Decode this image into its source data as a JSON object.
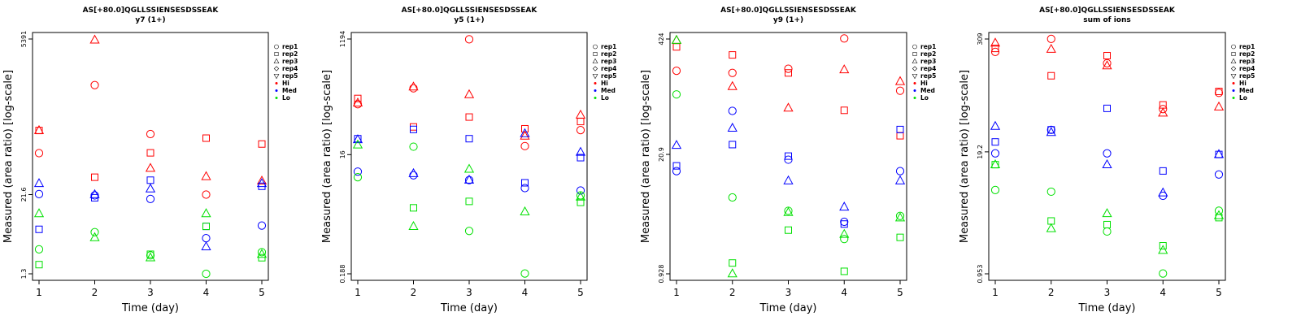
{
  "chart_data": [
    {
      "type": "scatter",
      "title": "AS[+80.0]QGLLSSIENSESDSSEAK",
      "subtitle": "y7 (1+)",
      "xlabel": "Time (day)",
      "ylabel": "Measured (area ratio) [log-scale]",
      "yscale": "log",
      "x_ticks": [
        1,
        2,
        3,
        4,
        5
      ],
      "y_ticks": [
        {
          "value": 1.3,
          "label": "1.3"
        },
        {
          "value": 21.6,
          "label": "21.6"
        },
        {
          "value": 5391,
          "label": "5391"
        }
      ],
      "ylim": [
        1.3,
        5391
      ],
      "legend": [
        "rep1",
        "rep2",
        "rep3",
        "rep4",
        "rep5",
        "Hi",
        "Med",
        "Lo"
      ],
      "legend_position": "right",
      "series": [
        {
          "level": "Hi",
          "rep": "rep1",
          "x": [
            1,
            2,
            3,
            4,
            5
          ],
          "y": [
            94,
            1050,
            185,
            21.6,
            null
          ]
        },
        {
          "level": "Hi",
          "rep": "rep2",
          "x": [
            1,
            2,
            3,
            4,
            5
          ],
          "y": [
            210,
            40,
            95,
            160,
            130
          ]
        },
        {
          "level": "Hi",
          "rep": "rep3",
          "x": [
            1,
            2,
            3,
            4,
            5
          ],
          "y": [
            210,
            5200,
            55,
            41,
            35
          ]
        },
        {
          "level": "Med",
          "rep": "rep1",
          "x": [
            1,
            2,
            3,
            4,
            5
          ],
          "y": [
            22,
            21,
            18.5,
            4.6,
            7.2
          ]
        },
        {
          "level": "Med",
          "rep": "rep2",
          "x": [
            1,
            2,
            3,
            4,
            5
          ],
          "y": [
            6.3,
            19.3,
            36,
            7,
            29
          ]
        },
        {
          "level": "Med",
          "rep": "rep3",
          "x": [
            1,
            2,
            3,
            4,
            5
          ],
          "y": [
            32,
            21.6,
            26.5,
            3.4,
            32
          ]
        },
        {
          "level": "Lo",
          "rep": "rep1",
          "x": [
            1,
            2,
            3,
            4,
            5
          ],
          "y": [
            3.1,
            5.7,
            2.5,
            1.3,
            2.8
          ]
        },
        {
          "level": "Lo",
          "rep": "rep2",
          "x": [
            1,
            2,
            3,
            4,
            5
          ],
          "y": [
            1.8,
            null,
            2.6,
            7,
            2.3
          ]
        },
        {
          "level": "Lo",
          "rep": "rep3",
          "x": [
            1,
            2,
            3,
            4,
            5
          ],
          "y": [
            11,
            4.7,
            2.3,
            11,
            2.6
          ]
        }
      ]
    },
    {
      "type": "scatter",
      "title": "AS[+80.0]QGLLSSIENSESDSSEAK",
      "subtitle": "y5 (1+)",
      "xlabel": "Time (day)",
      "ylabel": "Measured (area ratio) [log-scale]",
      "yscale": "log",
      "x_ticks": [
        1,
        2,
        3,
        4,
        5
      ],
      "y_ticks": [
        {
          "value": 0.188,
          "label": "0.188"
        },
        {
          "value": 16,
          "label": "16"
        },
        {
          "value": 1194,
          "label": "1194"
        }
      ],
      "ylim": [
        0.188,
        1194
      ],
      "legend": [
        "rep1",
        "rep2",
        "rep3",
        "rep4",
        "rep5",
        "Hi",
        "Med",
        "Lo"
      ],
      "legend_position": "right",
      "series": [
        {
          "level": "Hi",
          "rep": "rep1",
          "x": [
            1,
            2,
            3,
            4,
            5
          ],
          "y": [
            105,
            190,
            1180,
            22,
            40
          ]
        },
        {
          "level": "Hi",
          "rep": "rep2",
          "x": [
            1,
            2,
            3,
            4,
            5
          ],
          "y": [
            130,
            45,
            65,
            42,
            55
          ]
        },
        {
          "level": "Hi",
          "rep": "rep3",
          "x": [
            1,
            2,
            3,
            4,
            5
          ],
          "y": [
            110,
            200,
            150,
            32,
            70
          ]
        },
        {
          "level": "Med",
          "rep": "rep1",
          "x": [
            1,
            2,
            3,
            4,
            5
          ],
          "y": [
            8.5,
            7.4,
            6.2,
            4.6,
            4.2
          ]
        },
        {
          "level": "Med",
          "rep": "rep2",
          "x": [
            1,
            2,
            3,
            4,
            5
          ],
          "y": [
            29,
            41,
            29,
            5.6,
            14.3
          ]
        },
        {
          "level": "Med",
          "rep": "rep3",
          "x": [
            1,
            2,
            3,
            4,
            5
          ],
          "y": [
            28,
            7.9,
            6.2,
            35,
            17.5
          ]
        },
        {
          "level": "Lo",
          "rep": "rep1",
          "x": [
            1,
            2,
            3,
            4,
            5
          ],
          "y": [
            6.9,
            21.5,
            0.93,
            0.19,
            3.5
          ]
        },
        {
          "level": "Lo",
          "rep": "rep2",
          "x": [
            1,
            2,
            3,
            4,
            5
          ],
          "y": [
            null,
            2.2,
            2.8,
            null,
            2.7
          ]
        },
        {
          "level": "Lo",
          "rep": "rep3",
          "x": [
            1,
            2,
            3,
            4,
            5
          ],
          "y": [
            23,
            1.1,
            9.3,
            1.9,
            3.3
          ]
        }
      ]
    },
    {
      "type": "scatter",
      "title": "AS[+80.0]QGLLSSIENSESDSSEAK",
      "subtitle": "y9 (1+)",
      "xlabel": "Time (day)",
      "ylabel": "Measured (area ratio) [log-scale]",
      "yscale": "log",
      "x_ticks": [
        1,
        2,
        3,
        4,
        5
      ],
      "y_ticks": [
        {
          "value": 0.928,
          "label": "0.928"
        },
        {
          "value": 20.9,
          "label": "20.9"
        },
        {
          "value": 424,
          "label": "424"
        }
      ],
      "ylim": [
        0.928,
        424
      ],
      "legend": [
        "rep1",
        "rep2",
        "rep3",
        "rep4",
        "rep5",
        "Hi",
        "Med",
        "Lo"
      ],
      "legend_position": "right",
      "series": [
        {
          "level": "Hi",
          "rep": "rep1",
          "x": [
            1,
            2,
            3,
            4,
            5
          ],
          "y": [
            185,
            175,
            195,
            430,
            110
          ]
        },
        {
          "level": "Hi",
          "rep": "rep2",
          "x": [
            1,
            2,
            3,
            4,
            5
          ],
          "y": [
            345,
            280,
            175,
            66,
            34
          ]
        },
        {
          "level": "Hi",
          "rep": "rep3",
          "x": [
            1,
            2,
            3,
            4,
            5
          ],
          "y": [
            410,
            123,
            70,
            190,
            140
          ]
        },
        {
          "level": "Med",
          "rep": "rep1",
          "x": [
            1,
            2,
            3,
            4,
            5
          ],
          "y": [
            13.5,
            65,
            18.2,
            3.6,
            13.5
          ]
        },
        {
          "level": "Med",
          "rep": "rep2",
          "x": [
            1,
            2,
            3,
            4,
            5
          ],
          "y": [
            15.5,
            27,
            20,
            3.4,
            40
          ]
        },
        {
          "level": "Med",
          "rep": "rep3",
          "x": [
            1,
            2,
            3,
            4,
            5
          ],
          "y": [
            26.5,
            41.5,
            10.5,
            5.3,
            10.5
          ]
        },
        {
          "level": "Lo",
          "rep": "rep1",
          "x": [
            1,
            2,
            3,
            4,
            5
          ],
          "y": [
            100,
            6.8,
            4.8,
            2.3,
            4.2
          ]
        },
        {
          "level": "Lo",
          "rep": "rep2",
          "x": [
            1,
            2,
            3,
            4,
            5
          ],
          "y": [
            null,
            1.23,
            2.9,
            0.99,
            2.4
          ]
        },
        {
          "level": "Lo",
          "rep": "rep3",
          "x": [
            1,
            2,
            3,
            4,
            5
          ],
          "y": [
            410,
            0.93,
            4.6,
            2.6,
            4
          ]
        }
      ]
    },
    {
      "type": "scatter",
      "title": "AS[+80.0]QGLLSSIENSESDSSEAK",
      "subtitle": "sum of ions",
      "xlabel": "Time (day)",
      "ylabel": "Measured (area ratio) [log-scale]",
      "yscale": "log",
      "x_ticks": [
        1,
        2,
        3,
        4,
        5
      ],
      "y_ticks": [
        {
          "value": 0.953,
          "label": "0.953"
        },
        {
          "value": 19.2,
          "label": "19.2"
        },
        {
          "value": 309,
          "label": "309"
        }
      ],
      "ylim": [
        0.953,
        309
      ],
      "legend": [
        "rep1",
        "rep2",
        "rep3",
        "rep4",
        "rep5",
        "Hi",
        "Med",
        "Lo"
      ],
      "legend_position": "right",
      "series": [
        {
          "level": "Hi",
          "rep": "rep1",
          "x": [
            1,
            2,
            3,
            4,
            5
          ],
          "y": [
            225,
            310,
            170,
            55,
            82
          ]
        },
        {
          "level": "Hi",
          "rep": "rep2",
          "x": [
            1,
            2,
            3,
            4,
            5
          ],
          "y": [
            245,
            125,
            205,
            61,
            85
          ]
        },
        {
          "level": "Hi",
          "rep": "rep3",
          "x": [
            1,
            2,
            3,
            4,
            5
          ],
          "y": [
            280,
            240,
            160,
            50,
            58
          ]
        },
        {
          "level": "Med",
          "rep": "rep1",
          "x": [
            1,
            2,
            3,
            4,
            5
          ],
          "y": [
            18.5,
            33,
            18.5,
            6.5,
            11
          ]
        },
        {
          "level": "Med",
          "rep": "rep2",
          "x": [
            1,
            2,
            3,
            4,
            5
          ],
          "y": [
            24.5,
            33,
            56,
            12,
            18
          ]
        },
        {
          "level": "Med",
          "rep": "rep3",
          "x": [
            1,
            2,
            3,
            4,
            5
          ],
          "y": [
            36,
            31,
            14,
            7,
            18
          ]
        },
        {
          "level": "Lo",
          "rep": "rep1",
          "x": [
            1,
            2,
            3,
            4,
            5
          ],
          "y": [
            7.5,
            7.2,
            2.7,
            0.96,
            4.5
          ]
        },
        {
          "level": "Lo",
          "rep": "rep2",
          "x": [
            1,
            2,
            3,
            4,
            5
          ],
          "y": [
            14,
            3.5,
            3.2,
            1.9,
            3.8
          ]
        },
        {
          "level": "Lo",
          "rep": "rep3",
          "x": [
            1,
            2,
            3,
            4,
            5
          ],
          "y": [
            14,
            2.9,
            4.2,
            1.7,
            4
          ]
        }
      ]
    }
  ],
  "colors": {
    "Hi": "#ff0000",
    "Med": "#0000ff",
    "Lo": "#00e000",
    "axis": "#000000"
  },
  "marker_symbols": {
    "rep1": "circle",
    "rep2": "square",
    "rep3": "triangle-up",
    "rep4": "diamond",
    "rep5": "triangle-down"
  }
}
